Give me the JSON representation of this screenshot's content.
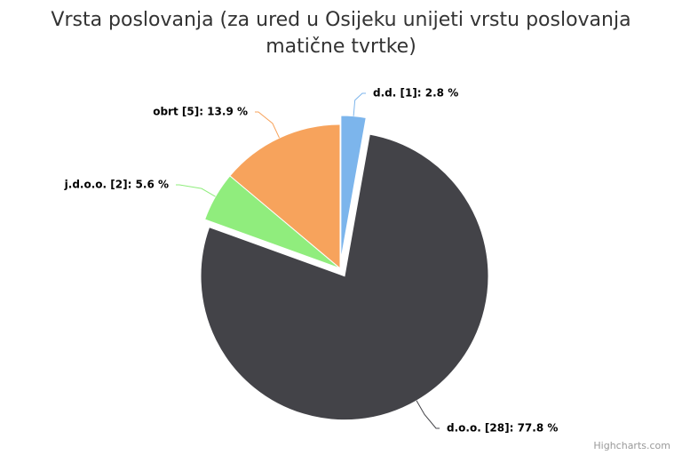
{
  "chart_data": {
    "type": "pie",
    "title": "Vrsta poslovanja (za ured u Osijeku unijeti vrstu poslovanja matične tvrtke)",
    "values": [
      2.8,
      77.8,
      5.6,
      13.9
    ],
    "value_labels": [
      "d.d. [1]: 2.8 %",
      "d.o.o. [28]: 77.8 %",
      "j.d.o.o. [2]: 5.6 %",
      "obrt [5]: 13.9 %"
    ],
    "colors": [
      "#7cb5ec",
      "#434348",
      "#90ed7d",
      "#f7a35c"
    ],
    "sliced": [
      true,
      true,
      false,
      false
    ],
    "credits": "Highcharts.com"
  }
}
